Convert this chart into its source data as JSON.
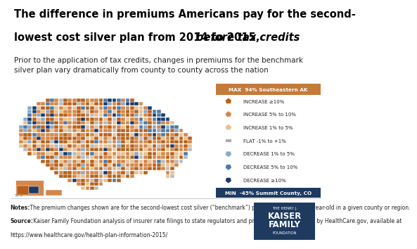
{
  "title_line1": "The difference in premiums Americans pay for the second-",
  "title_line2_normal": "lowest cost silver plan from 2014 to 2015, ",
  "title_line2_italic": "before tax credits",
  "subtitle": "Prior to the application of tax credits, changes in premiums for the benchmark\nsilver plan vary dramatically from county to county across the nation",
  "legend_max_label": "MAX  94% Southeastern AK",
  "legend_max_color": "#c47a3a",
  "legend_min_label": "MIN  -45% Summit County, CO",
  "legend_min_color": "#1e3a5f",
  "legend_items": [
    {
      "label": "INCREASE ≥10%",
      "color": "#b8601a",
      "marker": "up"
    },
    {
      "label": "INCREASE 5% to 10%",
      "color": "#d4874a",
      "marker": "up"
    },
    {
      "label": "INCREASE 1% to 5%",
      "color": "#e8c090",
      "marker": "up"
    },
    {
      "label": "FLAT -1% to +1%",
      "color": "#aaaaaa",
      "marker": "flat"
    },
    {
      "label": "DECREASE 1% to 5%",
      "color": "#8aaac8",
      "marker": "down"
    },
    {
      "label": "DECREASE 5% to 10%",
      "color": "#4a7aaa",
      "marker": "down"
    },
    {
      "label": "DECREASE ≥10%",
      "color": "#1a3a6a",
      "marker": "down"
    }
  ],
  "notes_bold": "Notes:",
  "notes_text1": " The premium changes shown are for the second-lowest cost silver (“benchmark”) plan available to a 40-year-old in a given county or region.",
  "source_bold": "Source:",
  "source_text1": " Kaiser Family Foundation analysis of insurer rate filings to state regulators and premium data published by HealthCare.gov, available at",
  "source_text2": "https://www.healthcare.gov/health-plan-information-2015/",
  "logo_line1": "THE HENRY J.",
  "logo_line2": "KAISER",
  "logo_line3": "FAMILY",
  "logo_line4": "FOUNDATION",
  "logo_bg": "#1e3a5f",
  "background_color": "#ffffff"
}
